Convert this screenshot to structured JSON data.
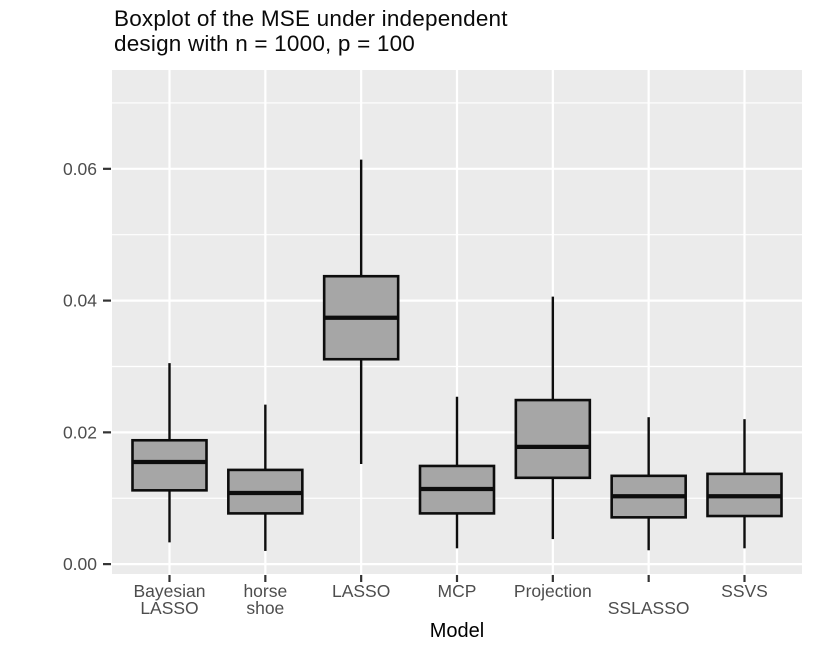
{
  "chart_data": {
    "type": "boxplot",
    "title_line1": "Boxplot of the MSE under independent",
    "title_line2": "design with n = 1000, p = 100",
    "xlabel": "Model",
    "ylabel": "",
    "legend_position": "none",
    "grid": true,
    "categories": [
      "Bayesian LASSO",
      "horse shoe",
      "LASSO",
      "MCP",
      "Projection",
      "SSLASSO",
      "SSVS"
    ],
    "x_tick_labels": [
      {
        "lines": [
          "Bayesian",
          "LASSO"
        ],
        "row": 0
      },
      {
        "lines": [
          "horse",
          "shoe"
        ],
        "row": 0
      },
      {
        "lines": [
          "LASSO"
        ],
        "row": 0
      },
      {
        "lines": [
          "MCP"
        ],
        "row": 0
      },
      {
        "lines": [
          "Projection"
        ],
        "row": 0
      },
      {
        "lines": [
          "SSLASSO"
        ],
        "row": 1
      },
      {
        "lines": [
          "SSVS"
        ],
        "row": 0
      }
    ],
    "boxes": [
      {
        "category": "Bayesian LASSO",
        "whisker_low": 0.0033,
        "q1": 0.0112,
        "median": 0.0155,
        "q3": 0.0188,
        "whisker_high": 0.0305
      },
      {
        "category": "horse shoe",
        "whisker_low": 0.002,
        "q1": 0.0077,
        "median": 0.0108,
        "q3": 0.0143,
        "whisker_high": 0.0242
      },
      {
        "category": "LASSO",
        "whisker_low": 0.0152,
        "q1": 0.0311,
        "median": 0.0374,
        "q3": 0.0437,
        "whisker_high": 0.0614
      },
      {
        "category": "MCP",
        "whisker_low": 0.0024,
        "q1": 0.0077,
        "median": 0.0114,
        "q3": 0.0149,
        "whisker_high": 0.0254
      },
      {
        "category": "Projection",
        "whisker_low": 0.0038,
        "q1": 0.0131,
        "median": 0.0178,
        "q3": 0.0249,
        "whisker_high": 0.0406
      },
      {
        "category": "SSLASSO",
        "whisker_low": 0.0021,
        "q1": 0.0071,
        "median": 0.0103,
        "q3": 0.0134,
        "whisker_high": 0.0223
      },
      {
        "category": "SSVS",
        "whisker_low": 0.0024,
        "q1": 0.0073,
        "median": 0.0103,
        "q3": 0.0137,
        "whisker_high": 0.022
      }
    ],
    "y_major_ticks": [
      0,
      0.02,
      0.04,
      0.06
    ],
    "y_tick_labels": [
      "0.00",
      "0.02",
      "0.04",
      "0.06"
    ],
    "y_minor_ticks": [
      0.01,
      0.03,
      0.05,
      0.07
    ],
    "ylim": [
      -0.0015,
      0.075
    ],
    "colors": {
      "panel_background": "#EBEBEB",
      "gridline": "#FFFFFF",
      "box_fill": "#A6A6A6",
      "box_border": "#0D0D0D",
      "median_line": "#0D0D0D",
      "whisker": "#0D0D0D",
      "tick_mark": "#333333",
      "tick_label": "#4D4D4D",
      "axis_title": "#000000",
      "title": "#0A0A0A"
    }
  }
}
